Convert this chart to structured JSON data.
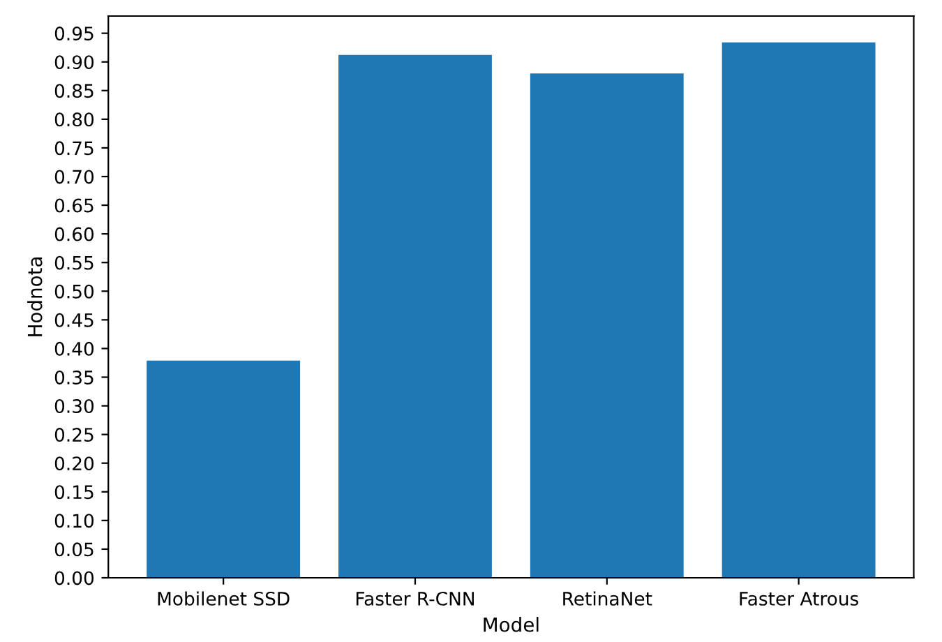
{
  "chart_data": {
    "type": "bar",
    "xlabel": "Model",
    "ylabel": "Hodnota",
    "categories": [
      "Mobilenet SSD",
      "Faster R-CNN",
      "RetinaNet",
      "Faster Atrous"
    ],
    "values": [
      0.379,
      0.912,
      0.88,
      0.934
    ],
    "color": "#1f77b4",
    "ylim": [
      0,
      0.98
    ],
    "yticks": [
      {
        "value": 0,
        "label": "0.00"
      },
      {
        "value": 0.05,
        "label": "0.05"
      },
      {
        "value": 0.1,
        "label": "0.10"
      },
      {
        "value": 0.15,
        "label": "0.15"
      },
      {
        "value": 0.2,
        "label": "0.20"
      },
      {
        "value": 0.25,
        "label": "0.25"
      },
      {
        "value": 0.3,
        "label": "0.30"
      },
      {
        "value": 0.35,
        "label": "0.35"
      },
      {
        "value": 0.4,
        "label": "0.40"
      },
      {
        "value": 0.45,
        "label": "0.45"
      },
      {
        "value": 0.5,
        "label": "0.50"
      },
      {
        "value": 0.55,
        "label": "0.55"
      },
      {
        "value": 0.6,
        "label": "0.60"
      },
      {
        "value": 0.65,
        "label": "0.65"
      },
      {
        "value": 0.7,
        "label": "0.70"
      },
      {
        "value": 0.75,
        "label": "0.75"
      },
      {
        "value": 0.8,
        "label": "0.80"
      },
      {
        "value": 0.85,
        "label": "0.85"
      },
      {
        "value": 0.9,
        "label": "0.90"
      },
      {
        "value": 0.95,
        "label": "0.95"
      }
    ],
    "grid": false,
    "legend": false
  }
}
